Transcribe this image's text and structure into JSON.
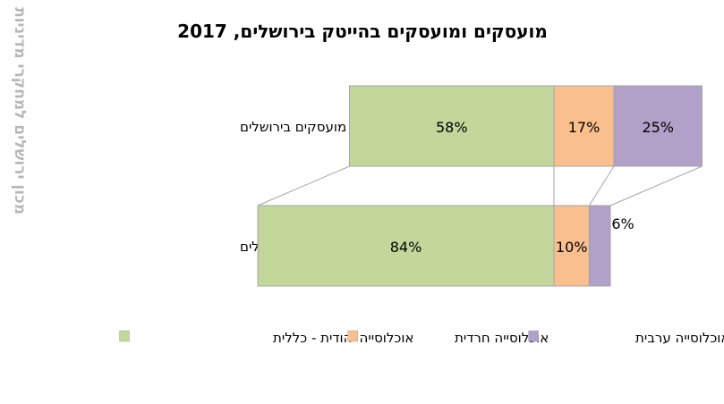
{
  "watermark": "מכון ירושלים למחקרי מדיניות",
  "chart_data": {
    "type": "bar",
    "stacked": true,
    "orientation": "horizontal",
    "title": "מועסקים ומועסקים בהייטק בירושלים, 2017",
    "categories": [
      "סה\"כ מועסקים בירושלים",
      "מועסקים בהייטק בירושלים"
    ],
    "series": [
      {
        "name": "אוכלוסייה יהודית - כללית",
        "color": "#c4d79b",
        "values": [
          58,
          84
        ]
      },
      {
        "name": "אוכלוסייה חרדית",
        "color": "#fabf8f",
        "values": [
          17,
          10
        ]
      },
      {
        "name": "אוכלוסייה ערבית",
        "color": "#b1a0c7",
        "values": [
          25,
          6
        ]
      }
    ],
    "data_labels": [
      [
        "58%",
        "17%",
        "25%"
      ],
      [
        "84%",
        "10%",
        "6%"
      ]
    ],
    "unit": "%",
    "legend": "bottom",
    "grid": false
  }
}
